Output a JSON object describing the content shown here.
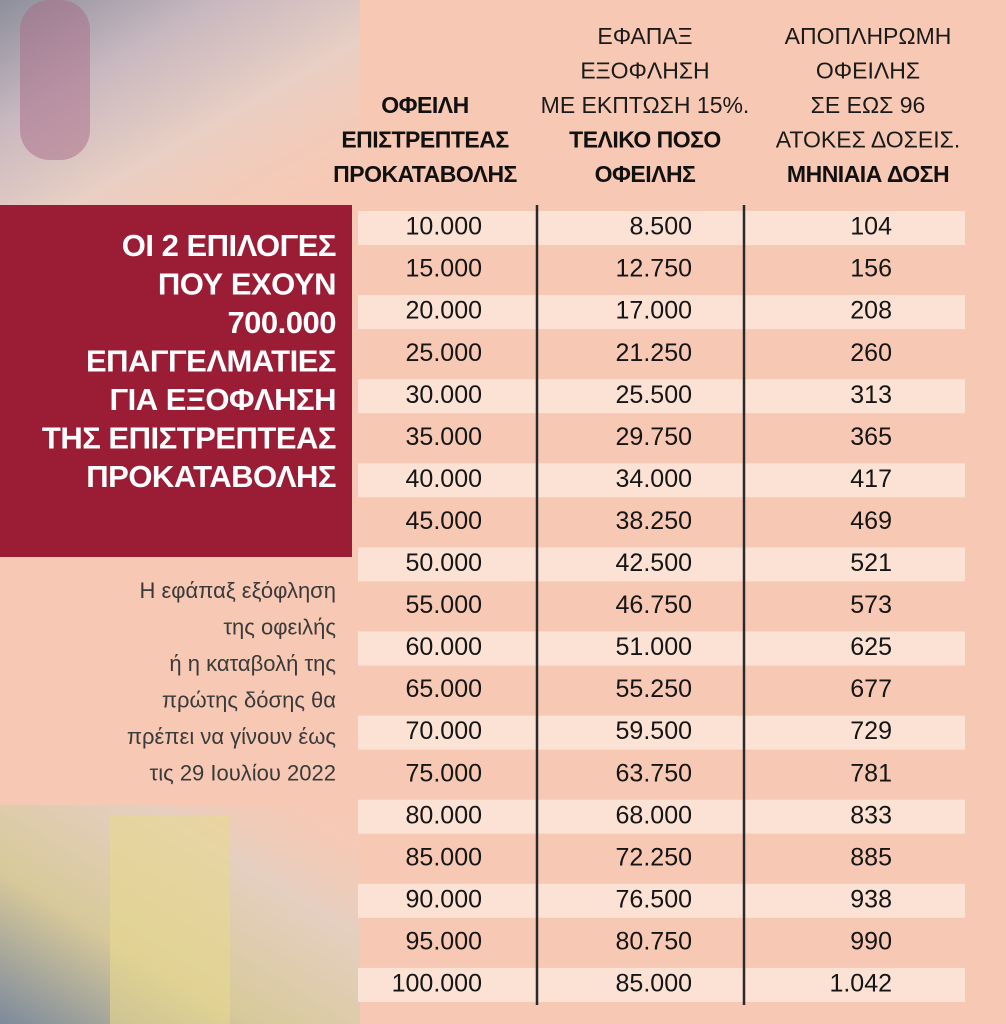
{
  "headline_lines": [
    "ΟΙ 2 ΕΠΙΛΟΓΕΣ",
    "ΠΟΥ ΕΧΟΥΝ",
    "700.000",
    "ΕΠΑΓΓΕΛΜΑΤΙΕΣ",
    "ΓΙΑ ΕΞΟΦΛΗΣΗ",
    "ΤΗΣ ΕΠΙΣΤΡΕΠΤΕΑΣ",
    "ΠΡΟΚΑΤΑΒΟΛΗΣ"
  ],
  "note_lines": [
    "Η εφάπαξ εξόφληση",
    "της οφειλής",
    "ή η καταβολή της",
    "πρώτης δόσης θα",
    "πρέπει να γίνουν έως",
    "τις 29 Ιουλίου 2022"
  ],
  "table": {
    "headers": [
      {
        "bold_lines": [
          "ΟΦΕΙΛΗ",
          "ΕΠΙΣΤΡΕΠΤΕΑΣ",
          "ΠΡΟΚΑΤΑΒΟΛΗΣ"
        ]
      },
      {
        "lines": [
          "ΕΦΑΠΑΞ",
          "ΕΞΟΦΛΗΣΗ",
          "ΜΕ ΕΚΠΤΩΣΗ 15%."
        ],
        "bold_lines": [
          "ΤΕΛΙΚΟ ΠΟΣΟ",
          "ΟΦΕΙΛΗΣ"
        ]
      },
      {
        "lines": [
          "ΑΠΟΠΛΗΡΩΜΗ",
          "ΟΦΕΙΛΗΣ",
          "ΣΕ ΕΩΣ 96",
          "ΑΤΟΚΕΣ ΔΟΣΕΙΣ."
        ],
        "bold_lines": [
          "ΜΗΝΙΑΙΑ ΔΟΣΗ"
        ]
      }
    ],
    "rows": [
      [
        "10.000",
        "8.500",
        "104"
      ],
      [
        "15.000",
        "12.750",
        "156"
      ],
      [
        "20.000",
        "17.000",
        "208"
      ],
      [
        "25.000",
        "21.250",
        "260"
      ],
      [
        "30.000",
        "25.500",
        "313"
      ],
      [
        "35.000",
        "29.750",
        "365"
      ],
      [
        "40.000",
        "34.000",
        "417"
      ],
      [
        "45.000",
        "38.250",
        "469"
      ],
      [
        "50.000",
        "42.500",
        "521"
      ],
      [
        "55.000",
        "46.750",
        "573"
      ],
      [
        "60.000",
        "51.000",
        "625"
      ],
      [
        "65.000",
        "55.250",
        "677"
      ],
      [
        "70.000",
        "59.500",
        "729"
      ],
      [
        "75.000",
        "63.750",
        "781"
      ],
      [
        "80.000",
        "68.000",
        "833"
      ],
      [
        "85.000",
        "72.250",
        "885"
      ],
      [
        "90.000",
        "76.500",
        "938"
      ],
      [
        "95.000",
        "80.750",
        "990"
      ],
      [
        "100.000",
        "85.000",
        "1.042"
      ]
    ]
  }
}
